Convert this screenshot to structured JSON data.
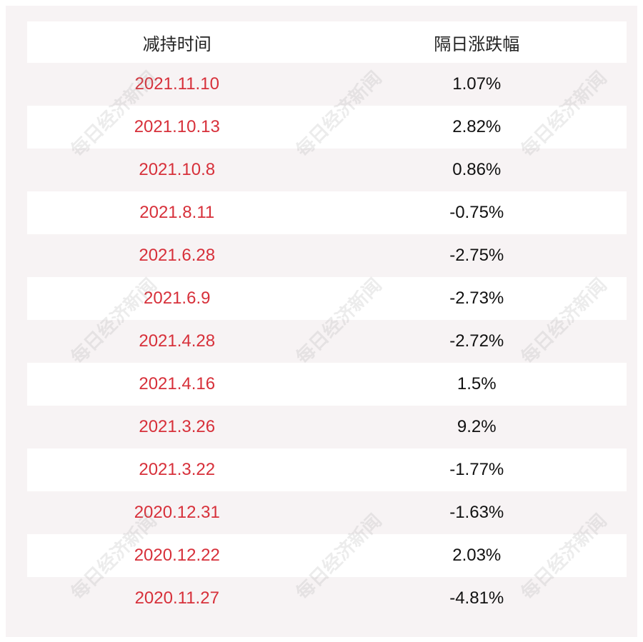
{
  "header": {
    "col1": "减持时间",
    "col2": "隔日涨跌幅"
  },
  "rows": [
    {
      "date": "2021.11.10",
      "change": "1.07%"
    },
    {
      "date": "2021.10.13",
      "change": "2.82%"
    },
    {
      "date": "2021.10.8",
      "change": "0.86%"
    },
    {
      "date": "2021.8.11",
      "change": "-0.75%"
    },
    {
      "date": "2021.6.28",
      "change": "-2.75%"
    },
    {
      "date": "2021.6.9",
      "change": "-2.73%"
    },
    {
      "date": "2021.4.28",
      "change": "-2.72%"
    },
    {
      "date": "2021.4.16",
      "change": "1.5%"
    },
    {
      "date": "2021.3.26",
      "change": "9.2%"
    },
    {
      "date": "2021.3.22",
      "change": "-1.77%"
    },
    {
      "date": "2020.12.31",
      "change": "-1.63%"
    },
    {
      "date": "2020.12.22",
      "change": "2.03%"
    },
    {
      "date": "2020.11.27",
      "change": "-4.81%"
    }
  ],
  "watermark": "每日经济新闻",
  "colors": {
    "date": "#d7303a",
    "background": "#f7f3f4"
  }
}
